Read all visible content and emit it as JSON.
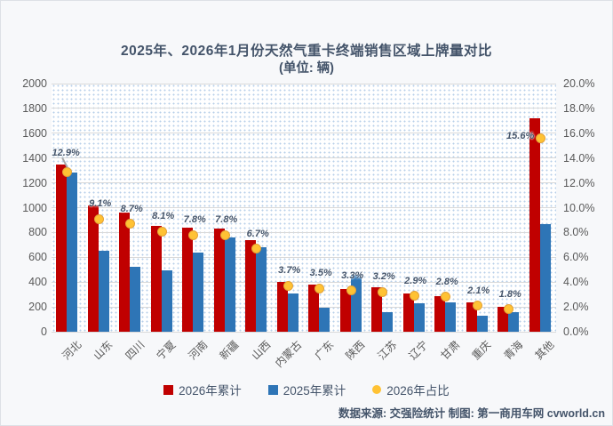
{
  "title": {
    "line1": "2025年、2026年1月份天然气重卡终端销售区域上牌量对比",
    "line2": "(单位: 辆)"
  },
  "footer": {
    "source": "数据来源: 交强险统计 制图: 第一商用车网 cvworld.cn"
  },
  "legend": {
    "items": [
      {
        "label": "2026年累计",
        "shape": "square",
        "color": "#c00000"
      },
      {
        "label": "2025年累计",
        "shape": "square",
        "color": "#2e75b6"
      },
      {
        "label": "2026年占比",
        "shape": "circle",
        "color": "#ffc234"
      }
    ]
  },
  "colors": {
    "background": "#f7f8fa",
    "frame_border": "#dde1e6",
    "plot_dot_pattern": "#b7cfe9",
    "gridline": "#d9d9d9",
    "bar_2026": "#c00000",
    "bar_2025": "#2e75b6",
    "share_dot": "#ffc234",
    "share_dot_border": "#e3a238",
    "title_text": "#44546a",
    "axis_text": "#595959",
    "pct_label_text": "#44546a",
    "leader_line": "#a6a6a6"
  },
  "chart_data": {
    "type": "bar",
    "title": "2025年、2026年1月份天然气重卡终端销售区域上牌量对比",
    "subtitle": "(单位: 辆)",
    "categories": [
      "河北",
      "山东",
      "四川",
      "宁夏",
      "河南",
      "新疆",
      "山西",
      "内蒙古",
      "广东",
      "陕西",
      "江苏",
      "辽宁",
      "甘肃",
      "重庆",
      "青海",
      "其他"
    ],
    "series": [
      {
        "name": "2026年累计",
        "type": "bar",
        "axis": "left",
        "color": "#c00000",
        "values": [
          1345,
          1020,
          960,
          855,
          840,
          835,
          740,
          400,
          380,
          345,
          355,
          310,
          290,
          240,
          200,
          1720
        ]
      },
      {
        "name": "2025年累计",
        "type": "bar",
        "axis": "left",
        "color": "#2e75b6",
        "values": [
          1280,
          650,
          520,
          495,
          640,
          760,
          680,
          310,
          195,
          460,
          160,
          230,
          240,
          130,
          160,
          870
        ]
      },
      {
        "name": "2026年占比",
        "type": "point",
        "axis": "right",
        "color": "#ffc234",
        "values": [
          12.9,
          9.1,
          8.7,
          8.1,
          7.8,
          7.8,
          6.7,
          3.7,
          3.5,
          3.3,
          3.2,
          2.9,
          2.8,
          2.1,
          1.8,
          15.6
        ],
        "labels": [
          "12.9%",
          "9.1%",
          "8.7%",
          "8.1%",
          "7.8%",
          "7.8%",
          "6.7%",
          "3.7%",
          "3.5%",
          "3.3%",
          "3.2%",
          "2.9%",
          "2.8%",
          "2.1%",
          "1.8%",
          "15.6%"
        ]
      }
    ],
    "left_axis": {
      "min": 0,
      "max": 2000,
      "step": 200,
      "ticks": [
        "0",
        "200",
        "400",
        "600",
        "800",
        "1000",
        "1200",
        "1400",
        "1600",
        "1800",
        "2000"
      ]
    },
    "right_axis": {
      "min": 0,
      "max": 20,
      "step": 2,
      "suffix": "%",
      "ticks": [
        "0.0%",
        "2.0%",
        "4.0%",
        "6.0%",
        "8.0%",
        "10.0%",
        "12.0%",
        "14.0%",
        "16.0%",
        "18.0%",
        "20.0%"
      ]
    },
    "grid": true,
    "legend_position": "bottom"
  }
}
